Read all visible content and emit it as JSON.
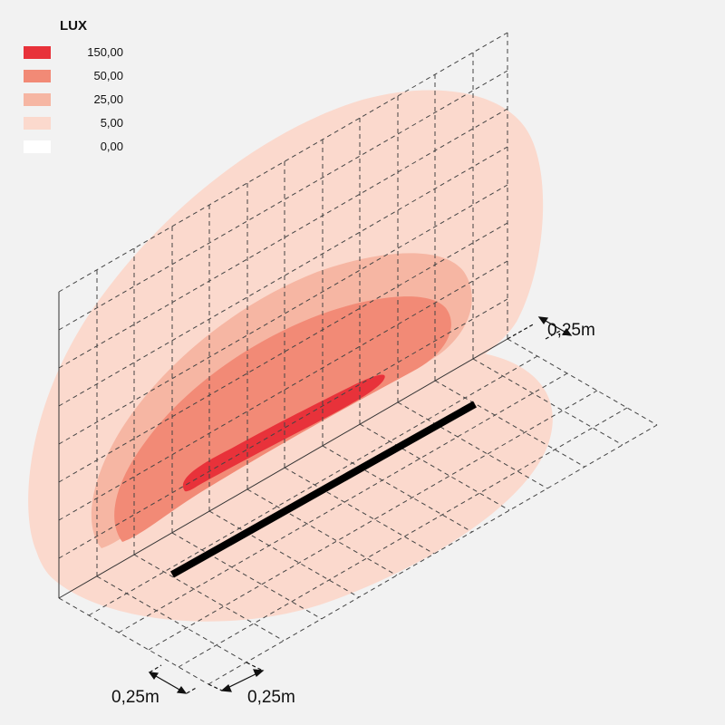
{
  "legend": {
    "title": "LUX",
    "items": [
      {
        "label": "150,00",
        "color": "#e8323a"
      },
      {
        "label": "50,00",
        "color": "#f28a76"
      },
      {
        "label": "25,00",
        "color": "#f6b6a3"
      },
      {
        "label": "5,00",
        "color": "#fbd9cd"
      },
      {
        "label": "0,00",
        "color": "#ffffff"
      }
    ]
  },
  "dimensions": {
    "right_spacing": "0,25m",
    "bottom_left_spacing": "0,25m",
    "bottom_right_spacing": "0,25m"
  },
  "colors": {
    "background": "#f2f2f2",
    "grid_line": "#444444",
    "luminaire": "#000000"
  }
}
